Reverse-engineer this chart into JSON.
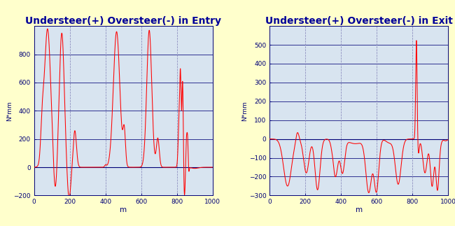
{
  "title_entry": "Understeer(+) Oversteer(-) in Entry",
  "title_exit": "Understeer(+) Oversteer(-) in Exit",
  "xlabel": "m",
  "ylabel": "N*mm",
  "xlim": [
    0,
    1000
  ],
  "ylim_entry": [
    -200,
    1000
  ],
  "ylim_exit": [
    -300,
    600
  ],
  "yticks_entry": [
    -200,
    0,
    200,
    400,
    600,
    800
  ],
  "yticks_exit": [
    -300,
    -200,
    -100,
    0,
    100,
    200,
    300,
    400,
    500
  ],
  "xticks": [
    0,
    200,
    400,
    600,
    800,
    1000
  ],
  "bg_color": "#ffffcc",
  "plot_bg_color": "#d8e4f0",
  "grid_h_color": "#000077",
  "grid_v_color": "#8888bb",
  "line_color": "#ff0000",
  "title_color": "#000099",
  "axis_color": "#000077",
  "title_fontsize": 10
}
